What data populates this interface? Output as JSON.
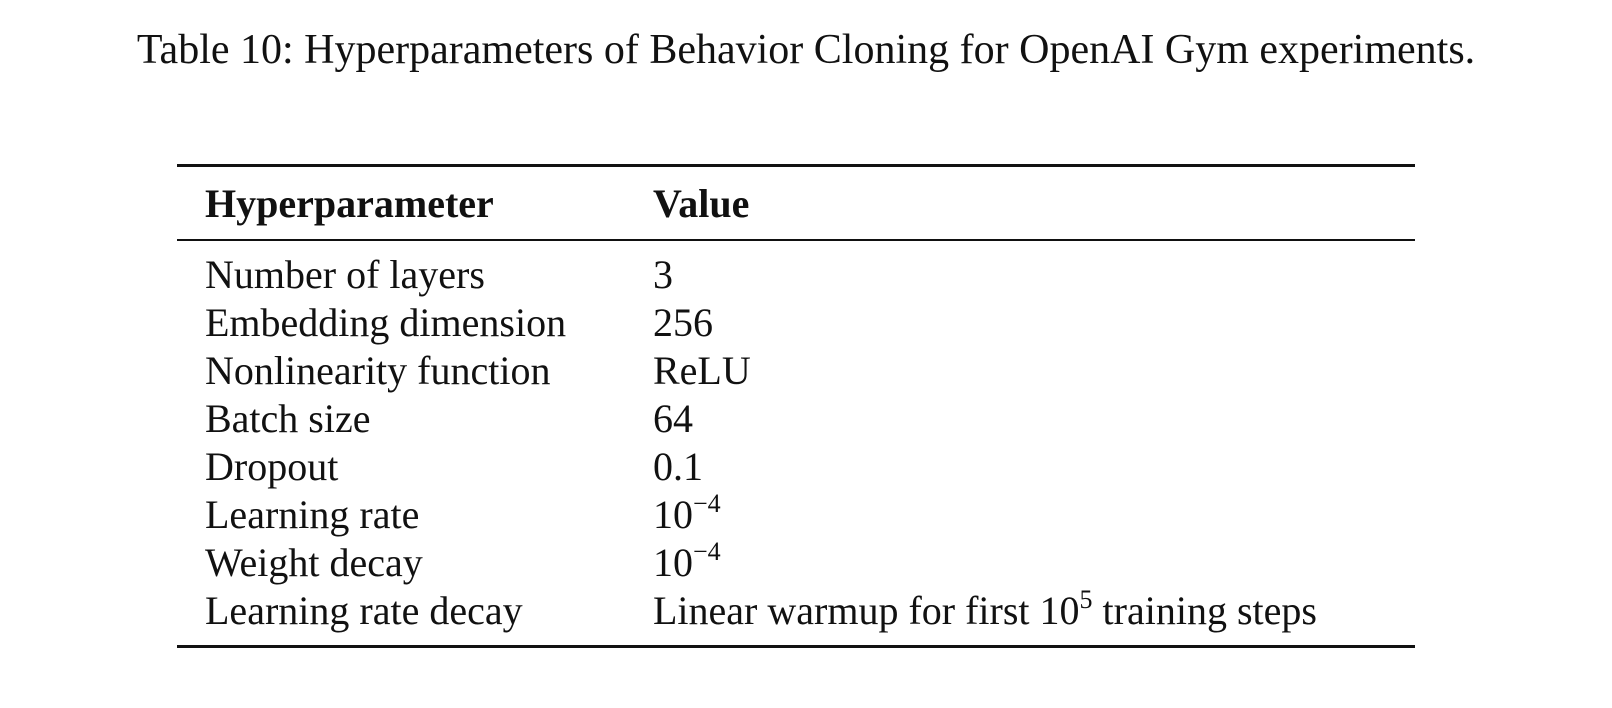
{
  "caption": "Table 10: Hyperparameters of Behavior Cloning for OpenAI Gym experiments.",
  "table": {
    "headers": [
      "Hyperparameter",
      "Value"
    ],
    "rows": [
      {
        "param": "Number of layers",
        "value": "3"
      },
      {
        "param": "Embedding dimension",
        "value": "256"
      },
      {
        "param": "Nonlinearity function",
        "value": "ReLU"
      },
      {
        "param": "Batch size",
        "value": "64"
      },
      {
        "param": "Dropout",
        "value": "0.1"
      },
      {
        "param": "Learning rate",
        "value_base": "10",
        "value_exp": "−4"
      },
      {
        "param": "Weight decay",
        "value_base": "10",
        "value_exp": "−4"
      },
      {
        "param": "Learning rate decay",
        "value_prefix": "Linear warmup for first 10",
        "value_exp": "5",
        "value_suffix": " training steps"
      }
    ]
  }
}
